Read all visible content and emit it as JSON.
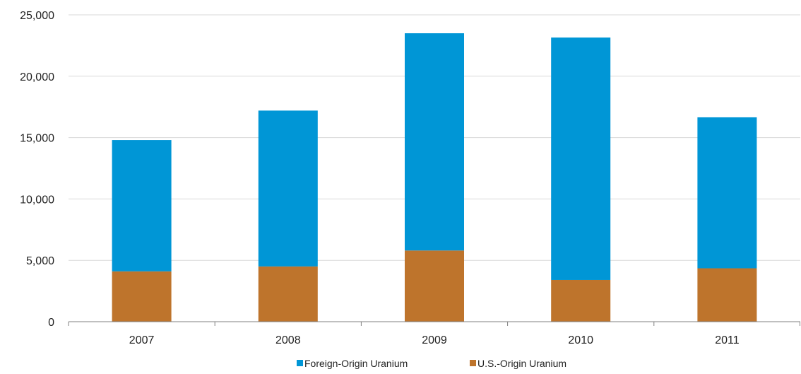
{
  "chart_data": {
    "type": "bar",
    "stacked": true,
    "title": "",
    "xlabel": "",
    "ylabel": "",
    "categories": [
      "2007",
      "2008",
      "2009",
      "2010",
      "2011"
    ],
    "series": [
      {
        "name": "U.S.-Origin Uranium",
        "color": "#BE742C",
        "values": [
          4100,
          4500,
          5800,
          3400,
          4350
        ]
      },
      {
        "name": "Foreign-Origin Uranium",
        "color": "#0096D6",
        "values": [
          10700,
          12700,
          17700,
          19750,
          12300
        ]
      }
    ],
    "ylim": [
      0,
      25000
    ],
    "yticks": [
      0,
      5000,
      10000,
      15000,
      20000,
      25000
    ],
    "ytick_labels": [
      "0",
      "5,000",
      "10,000",
      "15,000",
      "20,000",
      "25,000"
    ],
    "grid": true,
    "legend": {
      "placement": "bottom",
      "order": [
        "Foreign-Origin Uranium",
        "U.S.-Origin Uranium"
      ]
    }
  }
}
